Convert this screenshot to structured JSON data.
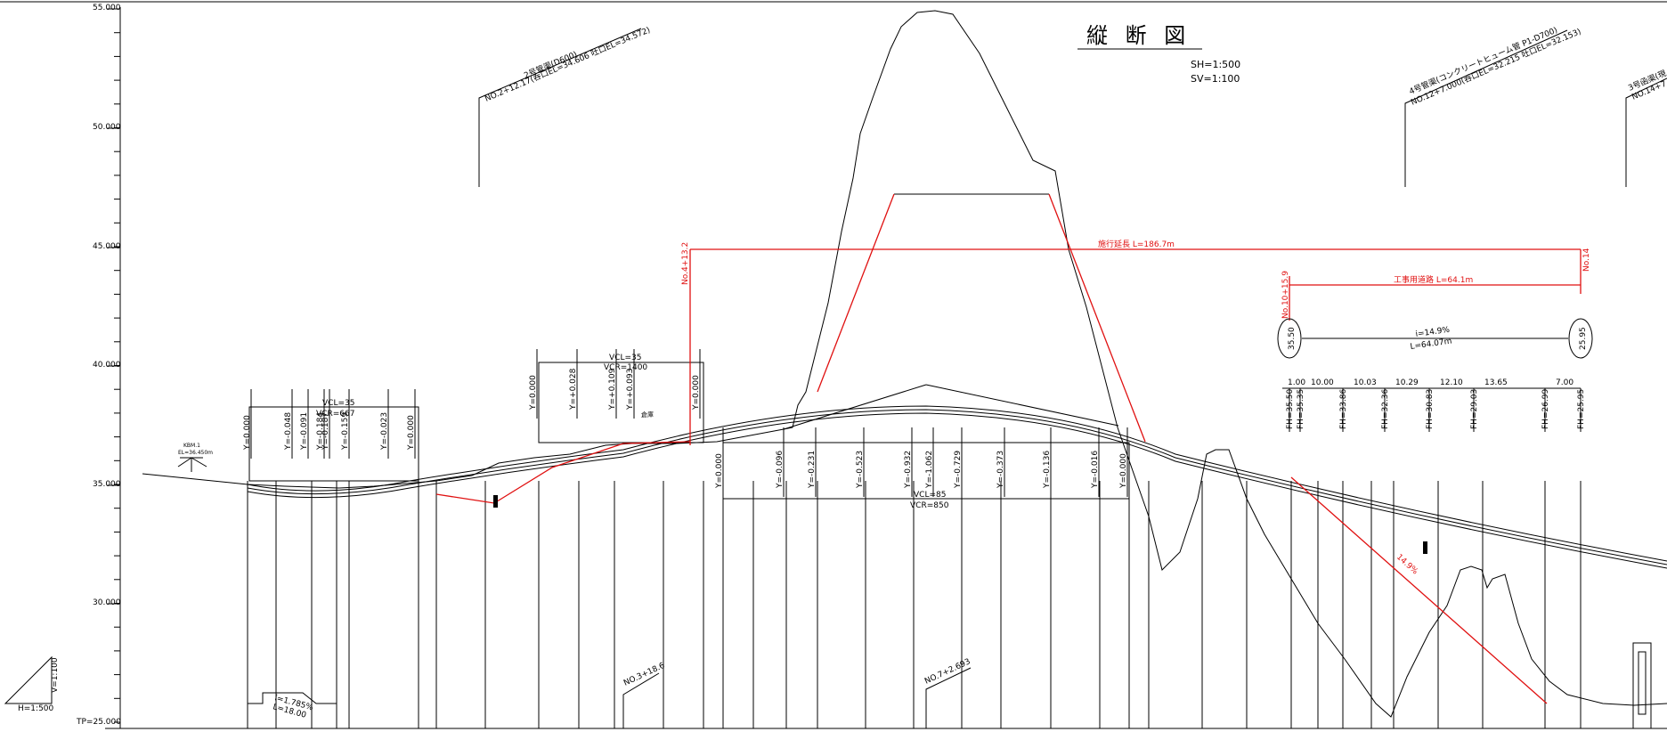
{
  "title": {
    "main": "縦 断 図",
    "scale_h": "SH=1:500",
    "scale_v": "SV=1:100"
  },
  "axis": {
    "ticks": [
      "55.000",
      "50.000",
      "45.000",
      "40.000",
      "35.000",
      "30.000"
    ],
    "base": "TP=25.000",
    "ratio_v": "V=1:100",
    "ratio_h": "H=1:500"
  },
  "pipes": {
    "pipe2_name": "2号管渠(D600)",
    "pipe2_detail": "NO.2+12.17(呑口EL=34.606 吐口EL=34.572)",
    "pipe4_name": "4号管渠(コンクリートヒューム管 P1-D700)",
    "pipe4_detail": "NO.12+7.000(呑口EL=32.215 吐口EL=32.153)",
    "pipe3_name": "3号函渠(現",
    "pipe3_detail": "NO.14+7"
  },
  "red_labels": {
    "construction_length": "施行延長 L=186.7m",
    "work_road": "工事用道路 L=64.1m",
    "sta_start": "No.4+13.2",
    "sta_end": "No.14",
    "sta_road": "No.10+15.9",
    "slope": "14.9%"
  },
  "curves": {
    "c1_vcl": "VCL=35",
    "c1_vcr": "VCR=667",
    "c2_vcl": "VCL=35",
    "c2_vcr": "VCR=1400",
    "c3_vcl": "VCL=85",
    "c3_vcr": "VCR=850"
  },
  "road": {
    "circle_left": "35.50",
    "circle_right": "25.95",
    "grade": "i=14.9%",
    "length": "L=64.07m",
    "intervals": [
      "1.00",
      "10.00",
      "10.03",
      "10.29",
      "12.10",
      "13.65",
      "7.00"
    ],
    "fh": [
      "FH=35.50",
      "FH=35.35",
      "FH=33.86",
      "FH=32.36",
      "FH=30.83",
      "FH=29.03",
      "FH=26.99",
      "FH=25.95"
    ]
  },
  "offsets": {
    "group1": [
      "Y=0.000",
      "Y=-0.048",
      "Y=-0.091",
      "Y=-0.184",
      "Y=-0.187",
      "Y=-0.159",
      "Y=-0.023",
      "Y=0.000"
    ],
    "group2": [
      "Y=0.000",
      "Y=+0.028",
      "Y=+0.109",
      "Y=+0.093",
      "Y=0.000"
    ],
    "group3": [
      "Y=0.000",
      "Y=-0.096",
      "Y=-0.231",
      "Y=-0.523",
      "Y=-0.932",
      "Y=-1.062",
      "Y=-0.729",
      "Y=-0.373",
      "Y=-0.136",
      "Y=-0.016",
      "Y=0.000"
    ]
  },
  "stations": {
    "s1": "NO.3+18.6",
    "s2": "NO.7+2.693"
  },
  "misc": {
    "kbm_name": "KBM.1",
    "kbm_value": "EL=36.450m",
    "storage": "倉庫",
    "bottom_grade": "i=1.785%",
    "bottom_length": "L=18.00"
  }
}
